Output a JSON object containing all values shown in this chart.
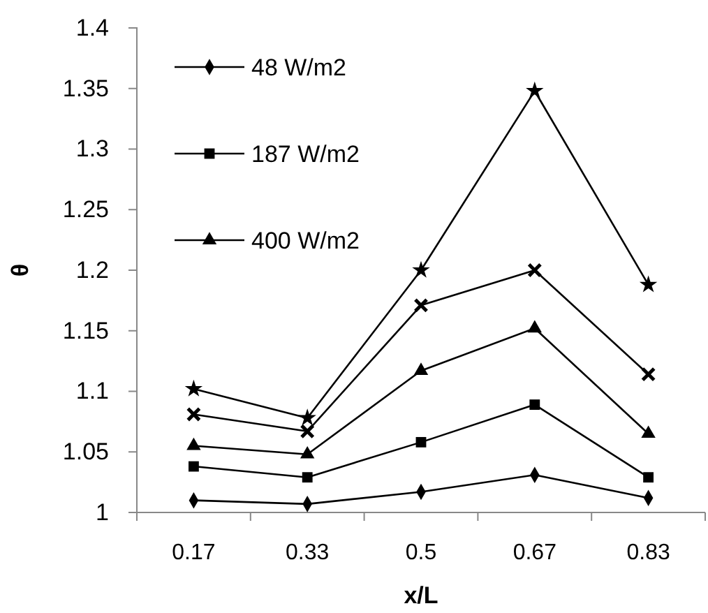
{
  "chart_data": {
    "type": "line",
    "xlabel": "x/L",
    "ylabel": "θ",
    "categories": [
      "0.17",
      "0.33",
      "0.5",
      "0.67",
      "0.83"
    ],
    "ylim": [
      1,
      1.4
    ],
    "yticks": [
      1,
      1.05,
      1.1,
      1.15,
      1.2,
      1.25,
      1.3,
      1.35,
      1.4
    ],
    "grid": false,
    "legend": "top left",
    "series": [
      {
        "name": "48 W/m2",
        "color": "#000000",
        "marker": "diamond",
        "values": [
          1.01,
          1.007,
          1.017,
          1.031,
          1.012
        ]
      },
      {
        "name": "187 W/m2",
        "color": "#000000",
        "marker": "square",
        "values": [
          1.038,
          1.029,
          1.058,
          1.089,
          1.029
        ]
      },
      {
        "name": "400 W/m2",
        "color": "#000000",
        "marker": "triangle",
        "values": [
          1.055,
          1.048,
          1.117,
          1.152,
          1.065
        ]
      },
      {
        "color": "#000000",
        "marker": "cross",
        "values": [
          1.081,
          1.067,
          1.171,
          1.2,
          1.114
        ]
      },
      {
        "color": "#000000",
        "marker": "star",
        "values": [
          1.102,
          1.078,
          1.2,
          1.348,
          1.188
        ]
      }
    ]
  }
}
